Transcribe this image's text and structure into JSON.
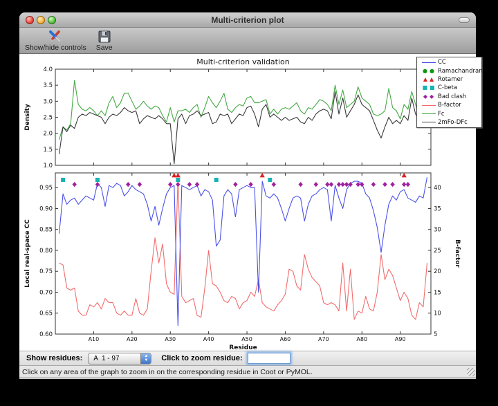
{
  "window": {
    "title": "Multi-criterion plot"
  },
  "toolbar": {
    "items": [
      {
        "label": "Show/hide controls",
        "icon": "tools-icon"
      },
      {
        "label": "Save",
        "icon": "floppy-disk-icon"
      }
    ]
  },
  "controls": {
    "show_residues_label": "Show residues:",
    "residue_range_value": "A  1 - 97",
    "zoom_label": "Click to zoom residue:",
    "zoom_input_value": ""
  },
  "status_bar": {
    "text": "Click on any area of the graph to zoom in on the corresponding residue in Coot or PyMOL."
  },
  "legend": {
    "position": "upper right",
    "entries": [
      {
        "label": "CC",
        "type": "line",
        "color": "#4a50e8"
      },
      {
        "label": "Ramachandran",
        "type": "marker",
        "glyph": "circle",
        "color": "#109510"
      },
      {
        "label": "Rotamer",
        "type": "marker",
        "glyph": "triangle",
        "color": "#dd2222"
      },
      {
        "label": "C-beta",
        "type": "marker",
        "glyph": "square",
        "color": "#18b2b2"
      },
      {
        "label": "Bad clash",
        "type": "marker",
        "glyph": "diamond",
        "color": "#a021a0"
      },
      {
        "label": "B-factor",
        "type": "line",
        "color": "#f26c6c"
      },
      {
        "label": "Fc",
        "type": "line",
        "color": "#44a944"
      },
      {
        "label": "2mFo-DFc",
        "type": "line",
        "color": "#3a3a3a"
      }
    ]
  },
  "chart_data": [
    {
      "type": "line",
      "title": "Multi-criterion validation",
      "ylabel": "Density",
      "ylim": [
        1.0,
        4.0
      ],
      "yticks": [
        1.0,
        1.5,
        2.0,
        2.5,
        3.0,
        3.5,
        4.0
      ],
      "x_range": [
        1,
        97
      ],
      "xticks_minor": [
        10,
        20,
        30,
        40,
        50,
        60,
        70,
        80,
        90
      ],
      "grid": false,
      "series": [
        {
          "name": "Fc",
          "color": "#44a944",
          "values": [
            1.8,
            2.2,
            2.1,
            2.3,
            3.65,
            2.9,
            2.75,
            2.7,
            2.8,
            2.7,
            2.55,
            2.7,
            2.55,
            2.95,
            3.15,
            2.8,
            2.95,
            3.25,
            3.25,
            3.0,
            2.75,
            2.85,
            3.0,
            2.85,
            2.75,
            2.85,
            2.8,
            2.55,
            2.35,
            2.8,
            2.35,
            2.7,
            2.7,
            2.75,
            2.65,
            2.8,
            2.9,
            2.5,
            2.8,
            3.15,
            2.95,
            2.8,
            3.0,
            3.25,
            2.75,
            2.65,
            2.8,
            2.9,
            2.85,
            3.1,
            3.15,
            2.95,
            2.95,
            3.0,
            3.05,
            2.6,
            2.75,
            2.6,
            2.75,
            2.8,
            2.75,
            2.85,
            2.95,
            2.7,
            2.6,
            2.8,
            2.75,
            2.9,
            3.05,
            3.0,
            2.9,
            2.7,
            3.5,
            2.9,
            3.35,
            2.8,
            2.9,
            3.0,
            3.45,
            3.1,
            3.0,
            2.9,
            2.6,
            2.55,
            2.6,
            2.7,
            3.4,
            2.8,
            2.7,
            2.45,
            2.9,
            2.75,
            3.3,
            2.9,
            2.45,
            2.6,
            3.6
          ]
        },
        {
          "name": "2mFo-DFc",
          "color": "#3a3a3a",
          "values": [
            1.35,
            2.2,
            2.05,
            2.25,
            2.15,
            2.5,
            2.6,
            2.55,
            2.65,
            2.6,
            2.55,
            2.5,
            2.3,
            2.5,
            2.6,
            2.55,
            2.65,
            2.8,
            2.7,
            2.65,
            2.7,
            2.3,
            2.45,
            2.55,
            2.5,
            2.45,
            2.55,
            2.45,
            2.3,
            2.3,
            1.05,
            2.45,
            2.6,
            2.3,
            2.55,
            2.6,
            2.7,
            2.55,
            2.6,
            2.65,
            2.3,
            2.35,
            2.6,
            2.55,
            2.6,
            2.3,
            2.45,
            2.6,
            2.55,
            2.8,
            2.85,
            2.6,
            2.2,
            2.75,
            2.9,
            2.5,
            2.6,
            2.5,
            2.4,
            2.5,
            2.4,
            2.45,
            2.5,
            2.35,
            2.3,
            2.5,
            2.4,
            2.6,
            2.7,
            2.75,
            2.7,
            2.45,
            3.3,
            2.6,
            3.1,
            2.5,
            2.7,
            2.9,
            3.2,
            2.9,
            2.8,
            2.7,
            2.4,
            2.1,
            1.85,
            2.2,
            2.5,
            2.3,
            2.4,
            2.3,
            2.55,
            2.4,
            3.1,
            2.6,
            2.4,
            2.5,
            3.5
          ]
        }
      ]
    },
    {
      "type": "line",
      "xlabel": "Residue",
      "ylabel_left": "Local real-space CC",
      "ylabel_right": "B-factor",
      "ylim_left": [
        0.6,
        0.985
      ],
      "yticks_left": [
        0.6,
        0.65,
        0.7,
        0.75,
        0.8,
        0.85,
        0.9,
        0.95
      ],
      "ylim_right": [
        5,
        43.5
      ],
      "yticks_right": [
        5,
        10,
        15,
        20,
        25,
        30,
        35,
        40
      ],
      "x_range": [
        1,
        97
      ],
      "xticks": [
        {
          "r": 10,
          "label": "A10"
        },
        {
          "r": 20,
          "label": "A20"
        },
        {
          "r": 30,
          "label": "A30"
        },
        {
          "r": 40,
          "label": "A40"
        },
        {
          "r": 50,
          "label": "A50"
        },
        {
          "r": 60,
          "label": "A60"
        },
        {
          "r": 70,
          "label": "A70"
        },
        {
          "r": 80,
          "label": "A80"
        },
        {
          "r": 90,
          "label": "A90"
        }
      ],
      "grid": false,
      "series": [
        {
          "name": "CC",
          "axis": "left",
          "color": "#4a50e8",
          "values": [
            0.84,
            0.935,
            0.91,
            0.92,
            0.925,
            0.91,
            0.92,
            0.93,
            0.925,
            0.92,
            0.96,
            0.95,
            0.905,
            0.955,
            0.95,
            0.96,
            0.955,
            0.93,
            0.94,
            0.955,
            0.945,
            0.94,
            0.935,
            0.91,
            0.87,
            0.905,
            0.86,
            0.9,
            0.935,
            0.95,
            0.955,
            0.62,
            0.955,
            0.95,
            0.945,
            0.95,
            0.955,
            0.93,
            0.945,
            0.94,
            0.92,
            0.81,
            0.825,
            0.93,
            0.945,
            0.935,
            0.88,
            0.945,
            0.95,
            0.955,
            0.95,
            0.95,
            0.7,
            0.965,
            0.93,
            0.925,
            0.935,
            0.925,
            0.9,
            0.87,
            0.9,
            0.925,
            0.93,
            0.925,
            0.87,
            0.91,
            0.93,
            0.935,
            0.945,
            0.95,
            0.945,
            0.87,
            0.955,
            0.925,
            0.9,
            0.945,
            0.96,
            0.965,
            0.965,
            0.96,
            0.935,
            0.925,
            0.895,
            0.855,
            0.795,
            0.86,
            0.91,
            0.93,
            0.92,
            0.94,
            0.945,
            0.925,
            0.92,
            0.915,
            0.93,
            0.925,
            0.975
          ]
        },
        {
          "name": "B-factor",
          "axis": "right",
          "color": "#f26c6c",
          "values": [
            22,
            21.5,
            16,
            15.5,
            16,
            10.5,
            9.5,
            9.5,
            12,
            11.5,
            12.5,
            11,
            13.5,
            12.5,
            12.5,
            10,
            9.5,
            10.5,
            9.5,
            9.5,
            13.5,
            10,
            9.5,
            11,
            20,
            28,
            22,
            26.5,
            17,
            15,
            14.5,
            42,
            14,
            12.5,
            13,
            13.5,
            9.5,
            9,
            16,
            25,
            17,
            16.5,
            15,
            13,
            12.5,
            14,
            13.5,
            11,
            12.5,
            13,
            15,
            14,
            18,
            12.5,
            11.5,
            11,
            10.5,
            12,
            13,
            14.5,
            20.5,
            20,
            16.5,
            15.5,
            24,
            20.5,
            18.5,
            17.5,
            16.5,
            12.5,
            12,
            12.5,
            12,
            10.5,
            22,
            10.5,
            20.5,
            8.5,
            10.5,
            10,
            14,
            11,
            10.5,
            15,
            24,
            18,
            20.5,
            19,
            16,
            13,
            15,
            13.5,
            9.5,
            8.5,
            12.5,
            11.5,
            22
          ]
        }
      ],
      "outlier_markers": [
        {
          "name": "Ramachandran",
          "shape": "circle",
          "color": "#109510",
          "cc_row": 0.99,
          "residues": []
        },
        {
          "name": "Rotamer",
          "shape": "triangle",
          "color": "#dd2222",
          "cc_row": 0.979,
          "residues": [
            31,
            32,
            54,
            91
          ]
        },
        {
          "name": "C-beta",
          "shape": "square",
          "color": "#18b2b2",
          "cc_row": 0.9685,
          "residues": [
            2,
            11,
            32,
            42,
            56
          ]
        },
        {
          "name": "Bad clash",
          "shape": "diamond",
          "color": "#a021a0",
          "cc_row": 0.9575,
          "residues": [
            5,
            11,
            19,
            22,
            30,
            32,
            35,
            37,
            47,
            51,
            57,
            64,
            68,
            71,
            72,
            74,
            75,
            76,
            77,
            79,
            80,
            83,
            86,
            88,
            91,
            92
          ]
        }
      ]
    }
  ]
}
